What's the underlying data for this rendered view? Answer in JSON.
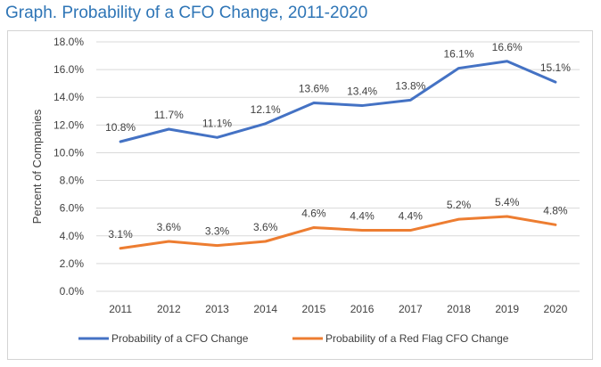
{
  "page_title": "Graph. Probability of a CFO Change, 2011-2020",
  "chart_data": {
    "type": "line",
    "title": "",
    "xlabel": "",
    "ylabel": "Percent of Companies",
    "categories": [
      "2011",
      "2012",
      "2013",
      "2014",
      "2015",
      "2016",
      "2017",
      "2018",
      "2019",
      "2020"
    ],
    "ylim": [
      0,
      18
    ],
    "yticks": [
      "0.0%",
      "2.0%",
      "4.0%",
      "6.0%",
      "8.0%",
      "10.0%",
      "12.0%",
      "14.0%",
      "16.0%",
      "18.0%"
    ],
    "grid": true,
    "legend_position": "bottom",
    "series": [
      {
        "name": "Probability of a CFO Change",
        "color": "#4472c4",
        "values": [
          10.8,
          11.7,
          11.1,
          12.1,
          13.6,
          13.4,
          13.8,
          16.1,
          16.6,
          15.1
        ],
        "labels": [
          "10.8%",
          "11.7%",
          "11.1%",
          "12.1%",
          "13.6%",
          "13.4%",
          "13.8%",
          "16.1%",
          "16.6%",
          "15.1%"
        ]
      },
      {
        "name": "Probability of a Red Flag CFO Change",
        "color": "#ed7d31",
        "values": [
          3.1,
          3.6,
          3.3,
          3.6,
          4.6,
          4.4,
          4.4,
          5.2,
          5.4,
          4.8
        ],
        "labels": [
          "3.1%",
          "3.6%",
          "3.3%",
          "3.6%",
          "4.6%",
          "4.4%",
          "4.4%",
          "5.2%",
          "5.4%",
          "4.8%"
        ]
      }
    ]
  }
}
